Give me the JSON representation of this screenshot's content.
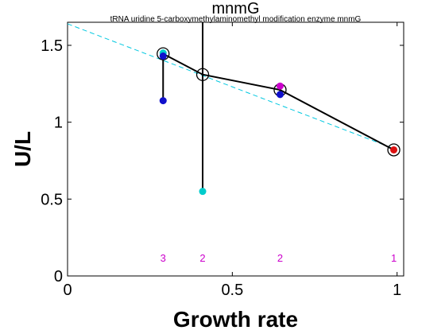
{
  "chart_data": {
    "type": "line",
    "title": "mnmG",
    "subtitle": "tRNA uridine 5-carboxymethylaminomethyl modification enzyme mnmG",
    "xlabel": "Growth rate",
    "ylabel": "U/L",
    "xlim": [
      0,
      1.02
    ],
    "ylim": [
      0,
      1.65
    ],
    "xticks": [
      {
        "value": 0,
        "label": "0"
      },
      {
        "value": 0.5,
        "label": "0.5"
      },
      {
        "value": 1,
        "label": "1"
      }
    ],
    "yticks": [
      {
        "value": 0,
        "label": "0"
      },
      {
        "value": 0.5,
        "label": "0.5"
      },
      {
        "value": 1,
        "label": "1"
      },
      {
        "value": 1.5,
        "label": "1.5"
      }
    ],
    "grid": false,
    "fit_line": {
      "color": "#00c8e0",
      "style": "dashed",
      "x": [
        0,
        1.0
      ],
      "y": [
        1.64,
        0.82
      ]
    },
    "mean_series": {
      "color": "#000000",
      "x": [
        0.29,
        0.41,
        0.645,
        0.99
      ],
      "y": [
        1.445,
        1.31,
        1.21,
        0.82
      ]
    },
    "error_bars": [
      {
        "x": 0.29,
        "low": 1.14,
        "high": 1.45
      },
      {
        "x": 0.41,
        "low": 0.55,
        "high": 1.65
      },
      {
        "x": 0.645,
        "low": 1.18,
        "high": 1.24
      }
    ],
    "points": [
      {
        "x": 0.29,
        "y": 1.45,
        "color": "#00cccc"
      },
      {
        "x": 0.29,
        "y": 1.43,
        "color": "#1010cc"
      },
      {
        "x": 0.29,
        "y": 1.14,
        "color": "#1010cc"
      },
      {
        "x": 0.41,
        "y": 0.55,
        "color": "#00cccc"
      },
      {
        "x": 0.645,
        "y": 1.235,
        "color": "#cc00cc"
      },
      {
        "x": 0.645,
        "y": 1.18,
        "color": "#1010cc"
      },
      {
        "x": 0.99,
        "y": 0.82,
        "color": "#dd1111"
      }
    ],
    "sample_counts": [
      {
        "x": 0.29,
        "label": "3"
      },
      {
        "x": 0.41,
        "label": "2"
      },
      {
        "x": 0.645,
        "label": "2"
      },
      {
        "x": 0.99,
        "label": "1"
      }
    ],
    "count_color": "#cc00cc",
    "count_y": 0.12
  }
}
